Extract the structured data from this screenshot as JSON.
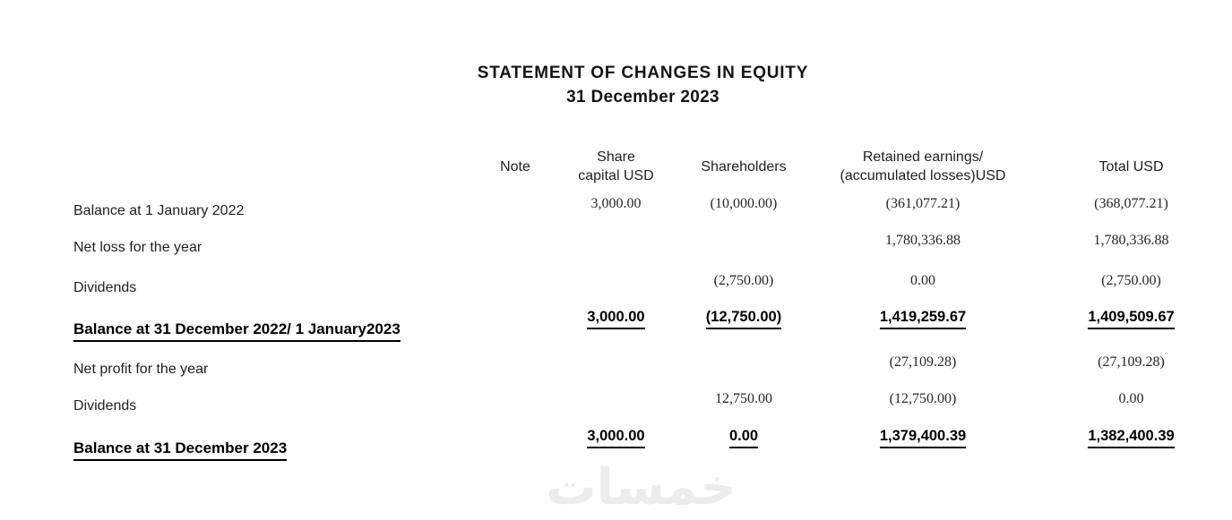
{
  "title": {
    "line1": "STATEMENT OF CHANGES IN EQUITY",
    "line2": "31 December 2023"
  },
  "table": {
    "headers": {
      "note": "Note",
      "share_capital_line1": "Share",
      "share_capital_line2": "capital USD",
      "shareholders": "Shareholders",
      "retained_line1": "Retained earnings/",
      "retained_line2": "(accumulated losses)USD",
      "total": "Total USD"
    },
    "rows": [
      {
        "label": "Balance at 1 January 2022",
        "note": "",
        "share_capital": "3,000.00",
        "shareholders": "(10,000.00)",
        "retained": "(361,077.21)",
        "total": "(368,077.21)"
      },
      {
        "label": "Net loss for the year",
        "note": "",
        "share_capital": "",
        "shareholders": "",
        "retained": "1,780,336.88",
        "total": "1,780,336.88"
      },
      {
        "label": "Dividends",
        "note": "",
        "share_capital": "",
        "shareholders": "(2,750.00)",
        "retained": "0.00",
        "total": "(2,750.00)"
      },
      {
        "label": "Balance at 31 December 2022/ 1 January2023",
        "note": "",
        "share_capital": "3,000.00",
        "shareholders": "(12,750.00)",
        "retained": "1,419,259.67",
        "total": "1,409,509.67"
      },
      {
        "label": "Net profit for the year",
        "note": "",
        "share_capital": "",
        "shareholders": "",
        "retained": "(27,109.28)",
        "total": "(27,109.28)"
      },
      {
        "label": "Dividends",
        "note": "",
        "share_capital": "",
        "shareholders": "12,750.00",
        "retained": "(12,750.00)",
        "total": "0.00"
      },
      {
        "label": "Balance at 31 December 2023",
        "note": "",
        "share_capital": "3,000.00",
        "shareholders": "0.00",
        "retained": "1,379,400.39",
        "total": "1,382,400.39"
      }
    ]
  },
  "watermark": {
    "text": "خمسات"
  }
}
